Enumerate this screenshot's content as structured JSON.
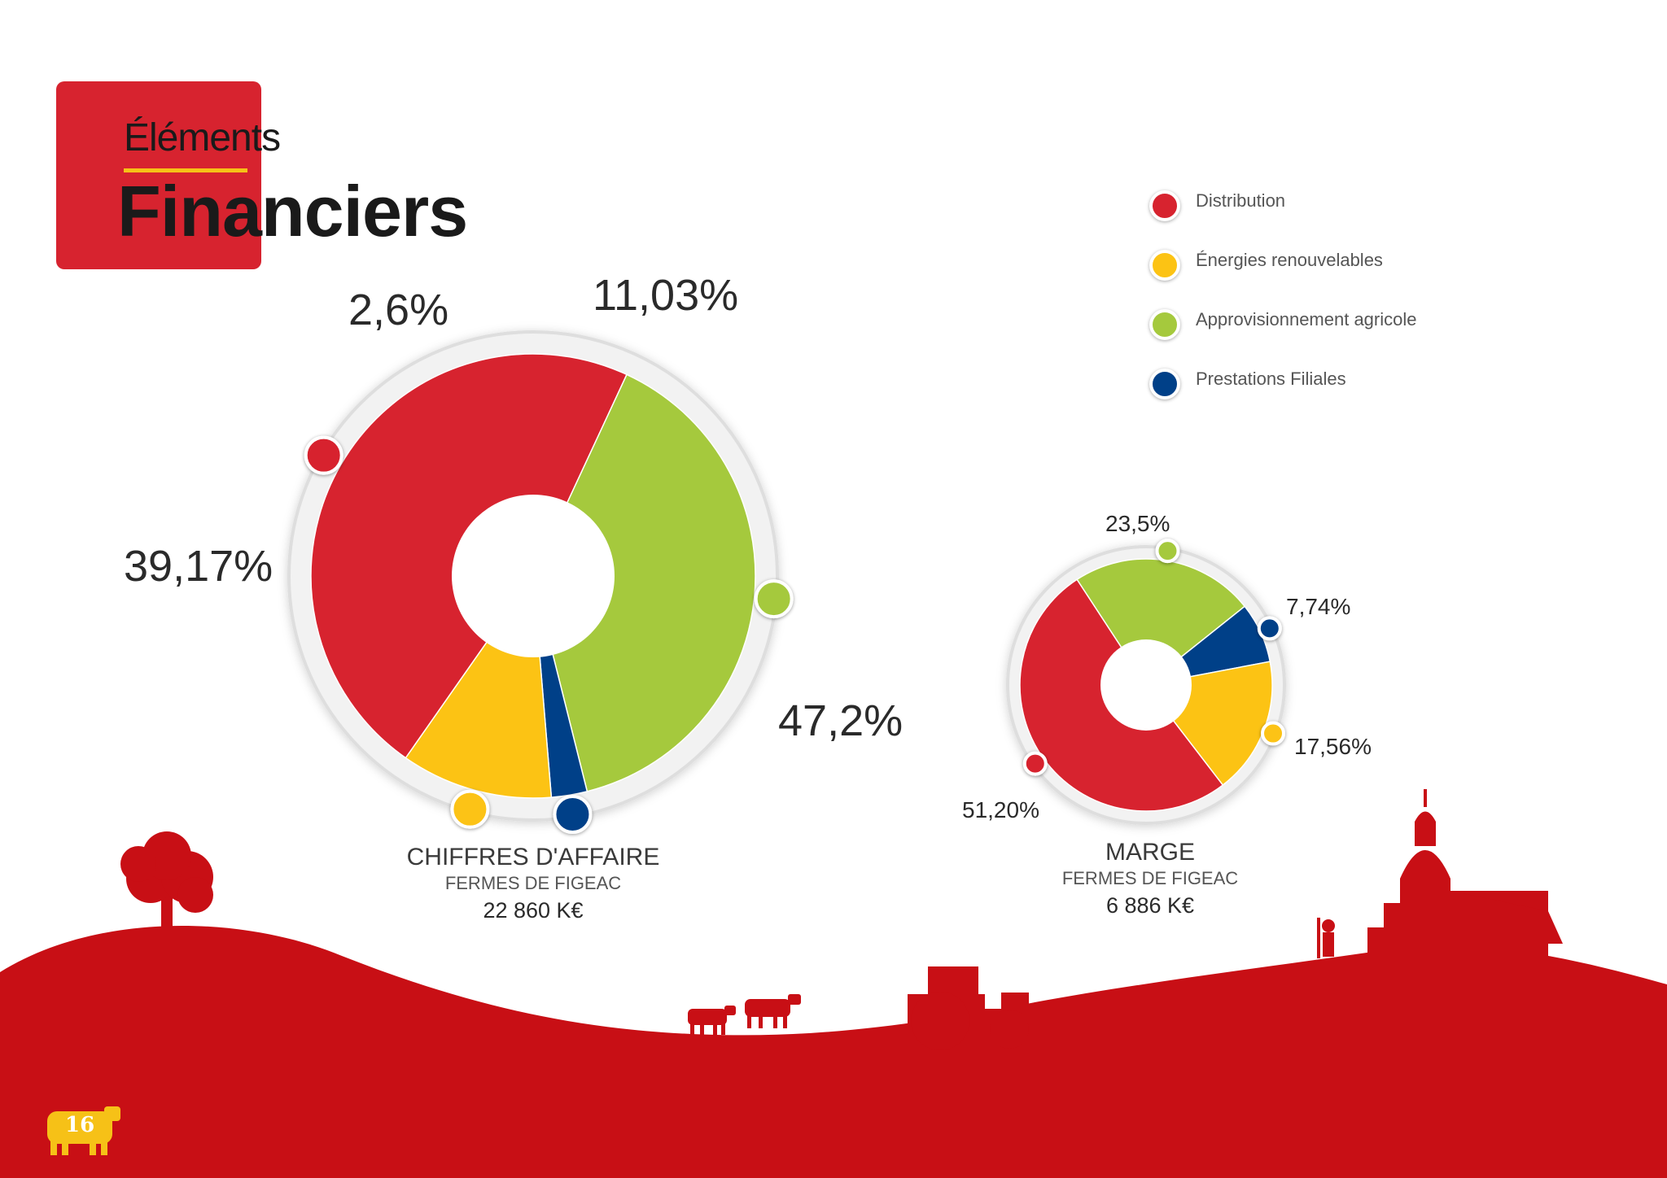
{
  "header": {
    "title_light": "Éléments",
    "title_bold": "Financiers"
  },
  "colors": {
    "distribution": "#d7232f",
    "energies": "#fcc314",
    "approvisionnement": "#a5c93d",
    "prestations": "#004088",
    "ground": "#c80f15",
    "cow_badge": "#f6c117"
  },
  "legend": [
    {
      "label": "Distribution",
      "color": "#d7232f"
    },
    {
      "label": "Énergies renouvelables",
      "color": "#fcc314"
    },
    {
      "label": "Approvisionnement agricole",
      "color": "#a5c93d"
    },
    {
      "label": "Prestations Filiales",
      "color": "#004088"
    }
  ],
  "chart_data": [
    {
      "type": "pie",
      "title": "CHIFFRES D'AFFAIRE",
      "subtitle": "FERMES DE FIGEAC",
      "total": "22 860 K€",
      "slices": [
        {
          "name": "Distribution",
          "value": 47.2,
          "label": "47,2%"
        },
        {
          "name": "Approvisionnement agricole",
          "value": 39.17,
          "label": "39,17%"
        },
        {
          "name": "Prestations Filiales",
          "value": 2.6,
          "label": "2,6%"
        },
        {
          "name": "Énergies renouvelables",
          "value": 11.03,
          "label": "11,03%"
        }
      ]
    },
    {
      "type": "pie",
      "title": "MARGE",
      "subtitle": "FERMES DE FIGEAC",
      "total": "6 886 K€",
      "slices": [
        {
          "name": "Distribution",
          "value": 51.2,
          "label": "51,20%"
        },
        {
          "name": "Approvisionnement agricole",
          "value": 23.5,
          "label": "23,5%"
        },
        {
          "name": "Prestations Filiales",
          "value": 7.74,
          "label": "7,74%"
        },
        {
          "name": "Énergies renouvelables",
          "value": 17.56,
          "label": "17,56%"
        }
      ]
    }
  ],
  "footer": {
    "page_number": "16"
  }
}
